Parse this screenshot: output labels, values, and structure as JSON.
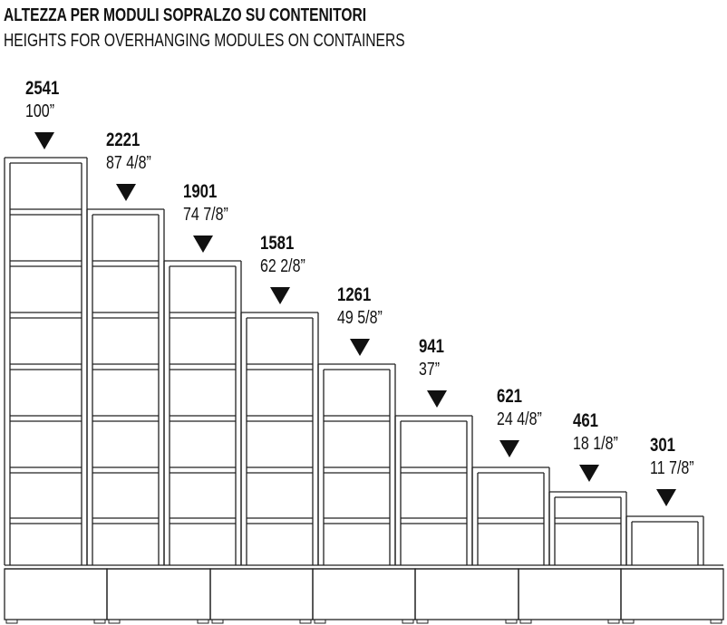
{
  "title": "ALTEZZA PER MODULI SOPRALZO SU CONTENITORI",
  "subtitle": "HEIGHTS FOR OVERHANGING MODULES ON CONTAINERS",
  "heights": [
    {
      "mm": "2541",
      "inch": "100”"
    },
    {
      "mm": "2221",
      "inch": "87 4/8”"
    },
    {
      "mm": "1901",
      "inch": "74 7/8”"
    },
    {
      "mm": "1581",
      "inch": "62 2/8”"
    },
    {
      "mm": "1261",
      "inch": "49 5/8”"
    },
    {
      "mm": "941",
      "inch": "37”"
    },
    {
      "mm": "621",
      "inch": "24 4/8”"
    },
    {
      "mm": "461",
      "inch": "18 1/8”"
    },
    {
      "mm": "301",
      "inch": "11 7/8”"
    }
  ],
  "line_color": "#222222"
}
